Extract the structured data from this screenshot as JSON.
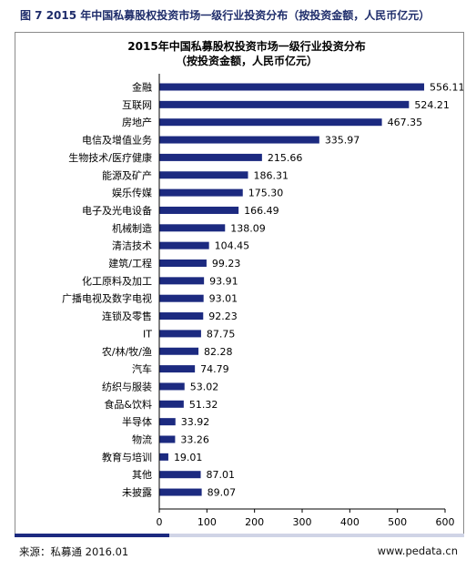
{
  "figure_title": "图 7 2015 年中国私募股权投资市场一级行业投资分布（按投资金额，人民币亿元）",
  "source": "来源：私募通  2016.01",
  "website": "www.pedata.cn",
  "colors": {
    "bar": "#1c2a80",
    "frame": "#8a8a8a",
    "accent": "#1c2a80"
  },
  "chart_data": {
    "type": "bar",
    "orientation": "horizontal",
    "title": "2015年中国私募股权投资市场一级行业投资分布",
    "subtitle": "（按投资金额，人民币亿元）",
    "categories": [
      "金融",
      "互联网",
      "房地产",
      "电信及增值业务",
      "生物技术/医疗健康",
      "能源及矿产",
      "娱乐传媒",
      "电子及光电设备",
      "机械制造",
      "清洁技术",
      "建筑/工程",
      "化工原料及加工",
      "广播电视及数字电视",
      "连锁及零售",
      "IT",
      "农/林/牧/渔",
      "汽车",
      "纺织与服装",
      "食品&饮料",
      "半导体",
      "物流",
      "教育与培训",
      "其他",
      "未披露"
    ],
    "values": [
      556.11,
      524.21,
      467.35,
      335.97,
      215.66,
      186.31,
      175.3,
      166.49,
      138.09,
      104.45,
      99.23,
      93.91,
      93.01,
      92.23,
      87.75,
      82.28,
      74.79,
      53.02,
      51.32,
      33.92,
      33.26,
      19.01,
      87.01,
      89.07
    ],
    "labels": [
      "556.11",
      "524.21",
      "467.35",
      "335.97",
      "215.66",
      "186.31",
      "175.30",
      "166.49",
      "138.09",
      "104.45",
      "99.23",
      "93.91",
      "93.01",
      "92.23",
      "87.75",
      "82.28",
      "74.79",
      "53.02",
      "51.32",
      "33.92",
      "33.26",
      "19.01",
      "87.01",
      "89.07"
    ],
    "xlim": [
      0,
      600
    ],
    "xticks": [
      "0",
      "100",
      "200",
      "300",
      "400",
      "500",
      "600"
    ],
    "grid": false,
    "legend": "none"
  }
}
